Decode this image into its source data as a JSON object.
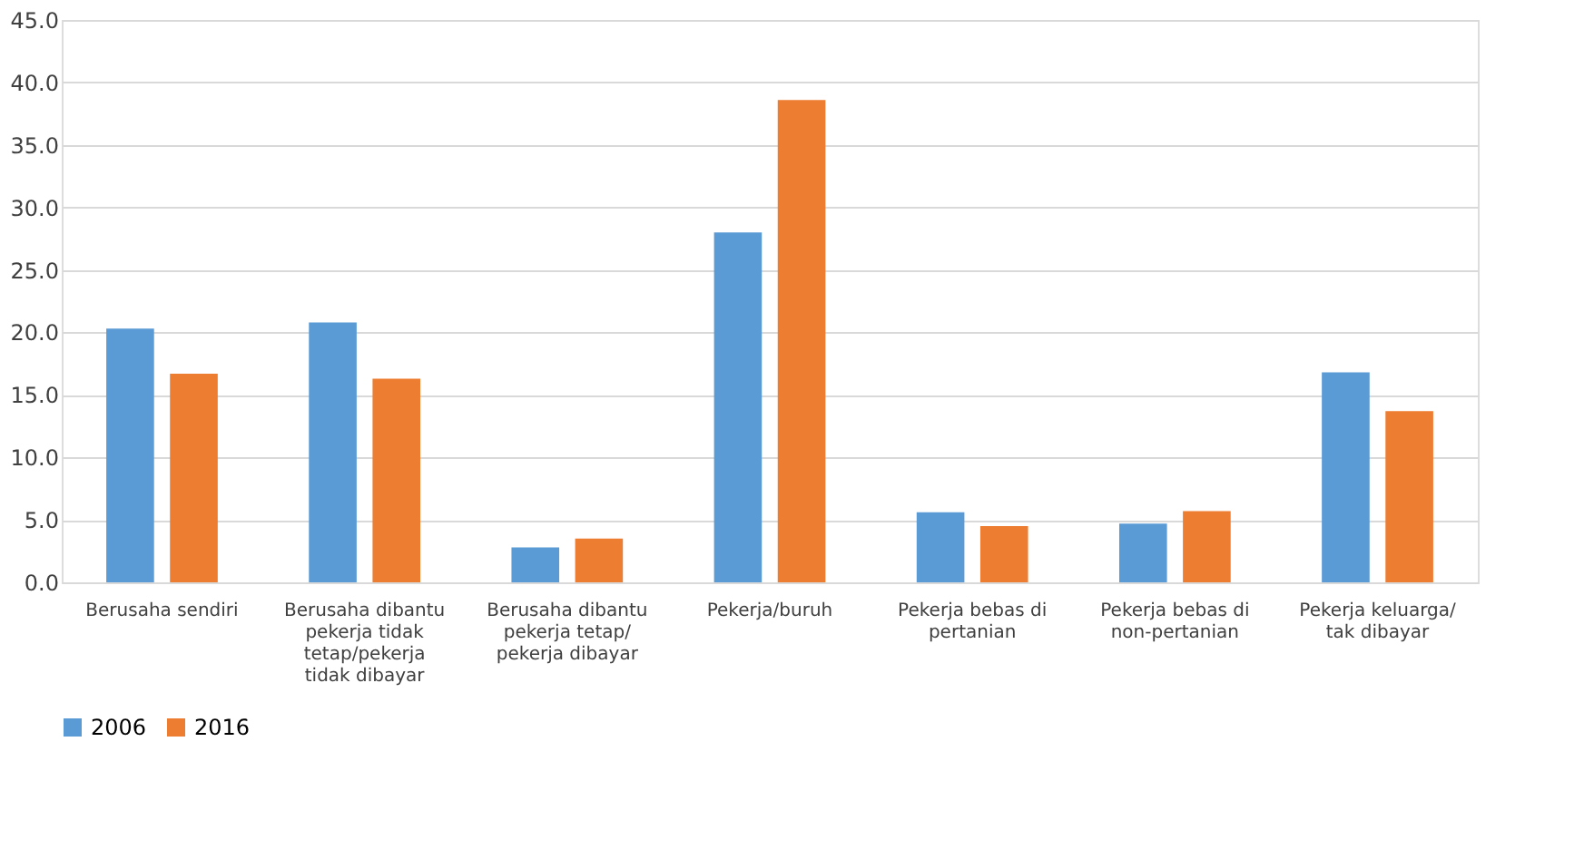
{
  "chart_data": {
    "type": "bar",
    "categories": [
      "Berusaha sendiri",
      "Berusaha dibantu pekerja tidak tetap/pekerja tidak dibayar",
      "Berusaha dibantu pekerja tetap/ pekerja dibayar",
      "Pekerja/buruh",
      "Pekerja bebas di pertanian",
      "Pekerja bebas di non-pertanian",
      "Pekerja keluarga/ tak dibayar"
    ],
    "series": [
      {
        "name": "2006",
        "color": "#5b9bd5",
        "values": [
          20.3,
          20.8,
          2.8,
          28.0,
          5.6,
          4.7,
          16.8
        ]
      },
      {
        "name": "2016",
        "color": "#ed7d31",
        "values": [
          16.7,
          16.3,
          3.5,
          38.6,
          4.5,
          5.7,
          13.7
        ]
      }
    ],
    "ylim": [
      0,
      45
    ],
    "yticks": [
      {
        "value": 0,
        "label": "0.0"
      },
      {
        "value": 5,
        "label": "5.0"
      },
      {
        "value": 10,
        "label": "10.0"
      },
      {
        "value": 15,
        "label": "15.0"
      },
      {
        "value": 20,
        "label": "20.0"
      },
      {
        "value": 25,
        "label": "25.0"
      },
      {
        "value": 30,
        "label": "30.0"
      },
      {
        "value": 35,
        "label": "35.0"
      },
      {
        "value": 40,
        "label": "40.0"
      },
      {
        "value": 45,
        "label": "45.0"
      }
    ],
    "grid": "y",
    "legend": "bottom"
  }
}
